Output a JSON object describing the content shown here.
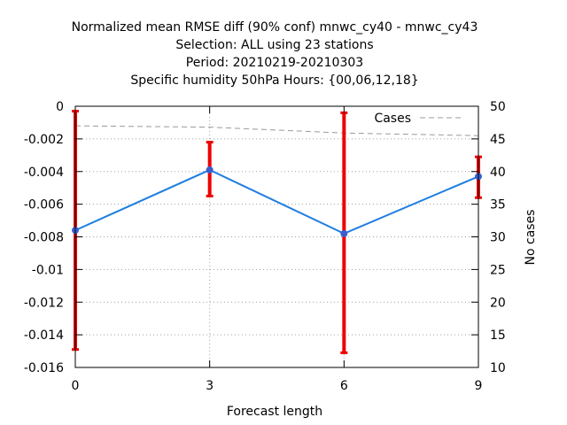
{
  "chart_data": {
    "type": "line",
    "title_lines": [
      "Normalized mean RMSE diff (90% conf) mnwc_cy40 - mnwc_cy43",
      "Selection: ALL using    23 stations",
      "Period: 20210219-20210303",
      "Specific humidity 50hPa   Hours: {00,06,12,18}"
    ],
    "xlabel": "Forecast length",
    "ylabel": "",
    "y2label": "No cases",
    "x": [
      0,
      3,
      6,
      9
    ],
    "xlim": [
      0,
      9
    ],
    "ylim": [
      -0.016,
      0
    ],
    "y2lim": [
      10,
      50
    ],
    "xticks": [
      0,
      3,
      6,
      9
    ],
    "xtick_labels": [
      "0",
      "3",
      "6",
      "9"
    ],
    "yticks": [
      0,
      -0.002,
      -0.004,
      -0.006,
      -0.008,
      -0.01,
      -0.012,
      -0.014,
      -0.016
    ],
    "ytick_labels": [
      "0",
      "-0.002",
      "-0.004",
      "-0.006",
      "-0.008",
      "-0.01",
      "-0.012",
      "-0.014",
      "-0.016"
    ],
    "y2ticks": [
      50,
      45,
      40,
      35,
      30,
      25,
      20,
      15,
      10
    ],
    "y2tick_labels": [
      "50",
      "45",
      "40",
      "35",
      "30",
      "25",
      "20",
      "15",
      "10"
    ],
    "grid": true,
    "series": [
      {
        "axis": "left",
        "values": [
          -0.0076,
          -0.0039,
          -0.0078,
          -0.0043
        ],
        "err_low": [
          -0.0149,
          -0.0055,
          -0.0151,
          -0.0056
        ],
        "err_high": [
          -0.0003,
          -0.0022,
          -0.0004,
          -0.0031
        ],
        "line_color": "#1f7fe0",
        "marker_color": "#3a5fcd",
        "error_color": "#ee0000"
      },
      {
        "name": "Cases",
        "axis": "right",
        "values": [
          47,
          46.8,
          45.9,
          45.5
        ],
        "line_color": "#999999",
        "dashed": true
      }
    ],
    "legend_position": "top-right"
  }
}
